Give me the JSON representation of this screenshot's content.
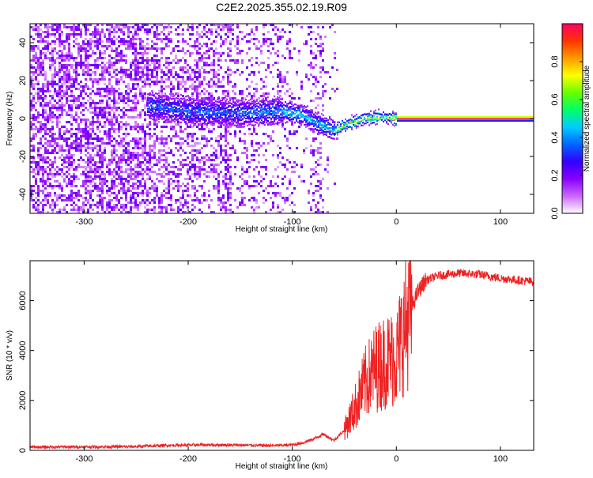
{
  "chart_data": [
    {
      "type": "heatmap",
      "title": "C2E2.2025.355.02.19.R09",
      "xlabel": "Height of straight line (km)",
      "ylabel": "Frequency (Hz)",
      "xlim": [
        -352,
        132
      ],
      "ylim": [
        -50,
        50
      ],
      "x_ticks": [
        -300,
        -200,
        -100,
        0,
        100
      ],
      "y_ticks": [
        -40,
        -20,
        0,
        20,
        40
      ],
      "colorbar": {
        "label": "Normalized spectral amplitude",
        "range": [
          0,
          1
        ],
        "ticks": [
          0.0,
          0.2,
          0.4,
          0.6,
          0.8
        ],
        "colors": [
          "#ffffff",
          "#cc66ff",
          "#8800ff",
          "#3300ff",
          "#0066ff",
          "#00ccff",
          "#00ff66",
          "#66ff00",
          "#ffff00",
          "#ff9900",
          "#ff3300",
          "#ff0066"
        ]
      },
      "signal_track": [
        {
          "x": -240,
          "y": 7
        },
        {
          "x": -200,
          "y": 4
        },
        {
          "x": -150,
          "y": 3
        },
        {
          "x": -110,
          "y": 4
        },
        {
          "x": -90,
          "y": 2
        },
        {
          "x": -75,
          "y": -3
        },
        {
          "x": -60,
          "y": -6
        },
        {
          "x": -45,
          "y": -2
        },
        {
          "x": -30,
          "y": 0
        },
        {
          "x": -15,
          "y": 1
        },
        {
          "x": 0,
          "y": 0
        },
        {
          "x": 132,
          "y": 0
        }
      ]
    },
    {
      "type": "line",
      "xlabel": "Height of straight line (km)",
      "ylabel": "SNR (10 * v/v)",
      "xlim": [
        -352,
        132
      ],
      "ylim": [
        0,
        7600
      ],
      "x_ticks": [
        -300,
        -200,
        -100,
        0,
        100
      ],
      "y_ticks": [
        0,
        2000,
        4000,
        6000
      ],
      "series": [
        {
          "color": "#ee2222",
          "points": [
            {
              "x": -352,
              "y": 130
            },
            {
              "x": -300,
              "y": 140
            },
            {
              "x": -250,
              "y": 150
            },
            {
              "x": -220,
              "y": 200
            },
            {
              "x": -180,
              "y": 220
            },
            {
              "x": -150,
              "y": 210
            },
            {
              "x": -120,
              "y": 190
            },
            {
              "x": -100,
              "y": 220
            },
            {
              "x": -90,
              "y": 300
            },
            {
              "x": -80,
              "y": 450
            },
            {
              "x": -70,
              "y": 650
            },
            {
              "x": -60,
              "y": 400
            },
            {
              "x": -50,
              "y": 800
            },
            {
              "x": -40,
              "y": 1700
            },
            {
              "x": -30,
              "y": 2700
            },
            {
              "x": -20,
              "y": 3300
            },
            {
              "x": -10,
              "y": 3600
            },
            {
              "x": 0,
              "y": 3700
            },
            {
              "x": 5,
              "y": 4500
            },
            {
              "x": 12,
              "y": 5400
            },
            {
              "x": 20,
              "y": 6300
            },
            {
              "x": 28,
              "y": 6800
            },
            {
              "x": 40,
              "y": 7000
            },
            {
              "x": 60,
              "y": 7100
            },
            {
              "x": 80,
              "y": 7050
            },
            {
              "x": 100,
              "y": 6900
            },
            {
              "x": 132,
              "y": 6750
            }
          ]
        }
      ]
    }
  ]
}
